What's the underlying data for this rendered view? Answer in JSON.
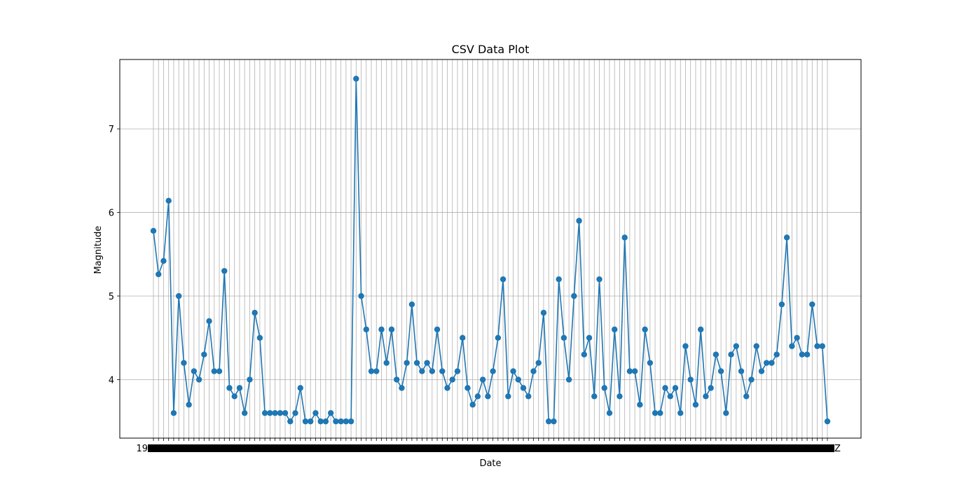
{
  "chart_data": {
    "type": "line",
    "title": "CSV Data Plot",
    "xlabel": "Date",
    "ylabel": "Magnitude",
    "y_ticks": [
      "4",
      "5",
      "6",
      "7"
    ],
    "ylim": [
      3.3,
      7.83
    ],
    "x_tick_labels_overlapping": true,
    "x_first_label_fragment": "19",
    "x_last_label_fragment": "Z",
    "grid": true,
    "marker": "circle",
    "color": "#1f77b4",
    "series": [
      {
        "values": [
          5.78,
          5.26,
          5.42,
          6.14,
          3.6,
          5.0,
          4.2,
          3.7,
          4.1,
          4.0,
          4.3,
          4.7,
          4.1,
          4.1,
          5.3,
          3.9,
          3.8,
          3.9,
          3.6,
          4.0,
          4.8,
          4.5,
          3.6,
          3.6,
          3.6,
          3.6,
          3.6,
          3.5,
          3.6,
          3.9,
          3.5,
          3.5,
          3.6,
          3.5,
          3.5,
          3.6,
          3.5,
          3.5,
          3.5,
          3.5,
          7.6,
          5.0,
          4.6,
          4.1,
          4.1,
          4.6,
          4.2,
          4.6,
          4.0,
          3.9,
          4.2,
          4.9,
          4.2,
          4.1,
          4.2,
          4.1,
          4.6,
          4.1,
          3.9,
          4.0,
          4.1,
          4.5,
          3.9,
          3.7,
          3.8,
          4.0,
          3.8,
          4.1,
          4.5,
          5.2,
          3.8,
          4.1,
          4.0,
          3.9,
          3.8,
          4.1,
          4.2,
          4.8,
          3.5,
          3.5,
          5.2,
          4.5,
          4.0,
          5.0,
          5.9,
          4.3,
          4.5,
          3.8,
          5.2,
          3.9,
          3.6,
          4.6,
          3.8,
          5.7,
          4.1,
          4.1,
          3.7,
          4.6,
          4.2,
          3.6,
          3.6,
          3.9,
          3.8,
          3.9,
          3.6,
          4.4,
          4.0,
          3.7,
          4.6,
          3.8,
          3.9,
          4.3,
          4.1,
          3.6,
          4.3,
          4.4,
          4.1,
          3.8,
          4.0,
          4.4,
          4.1,
          4.2,
          4.2,
          4.3,
          4.9,
          5.7,
          4.4,
          4.5,
          4.3,
          4.3,
          4.9,
          4.4,
          4.4,
          3.5
        ]
      }
    ]
  }
}
